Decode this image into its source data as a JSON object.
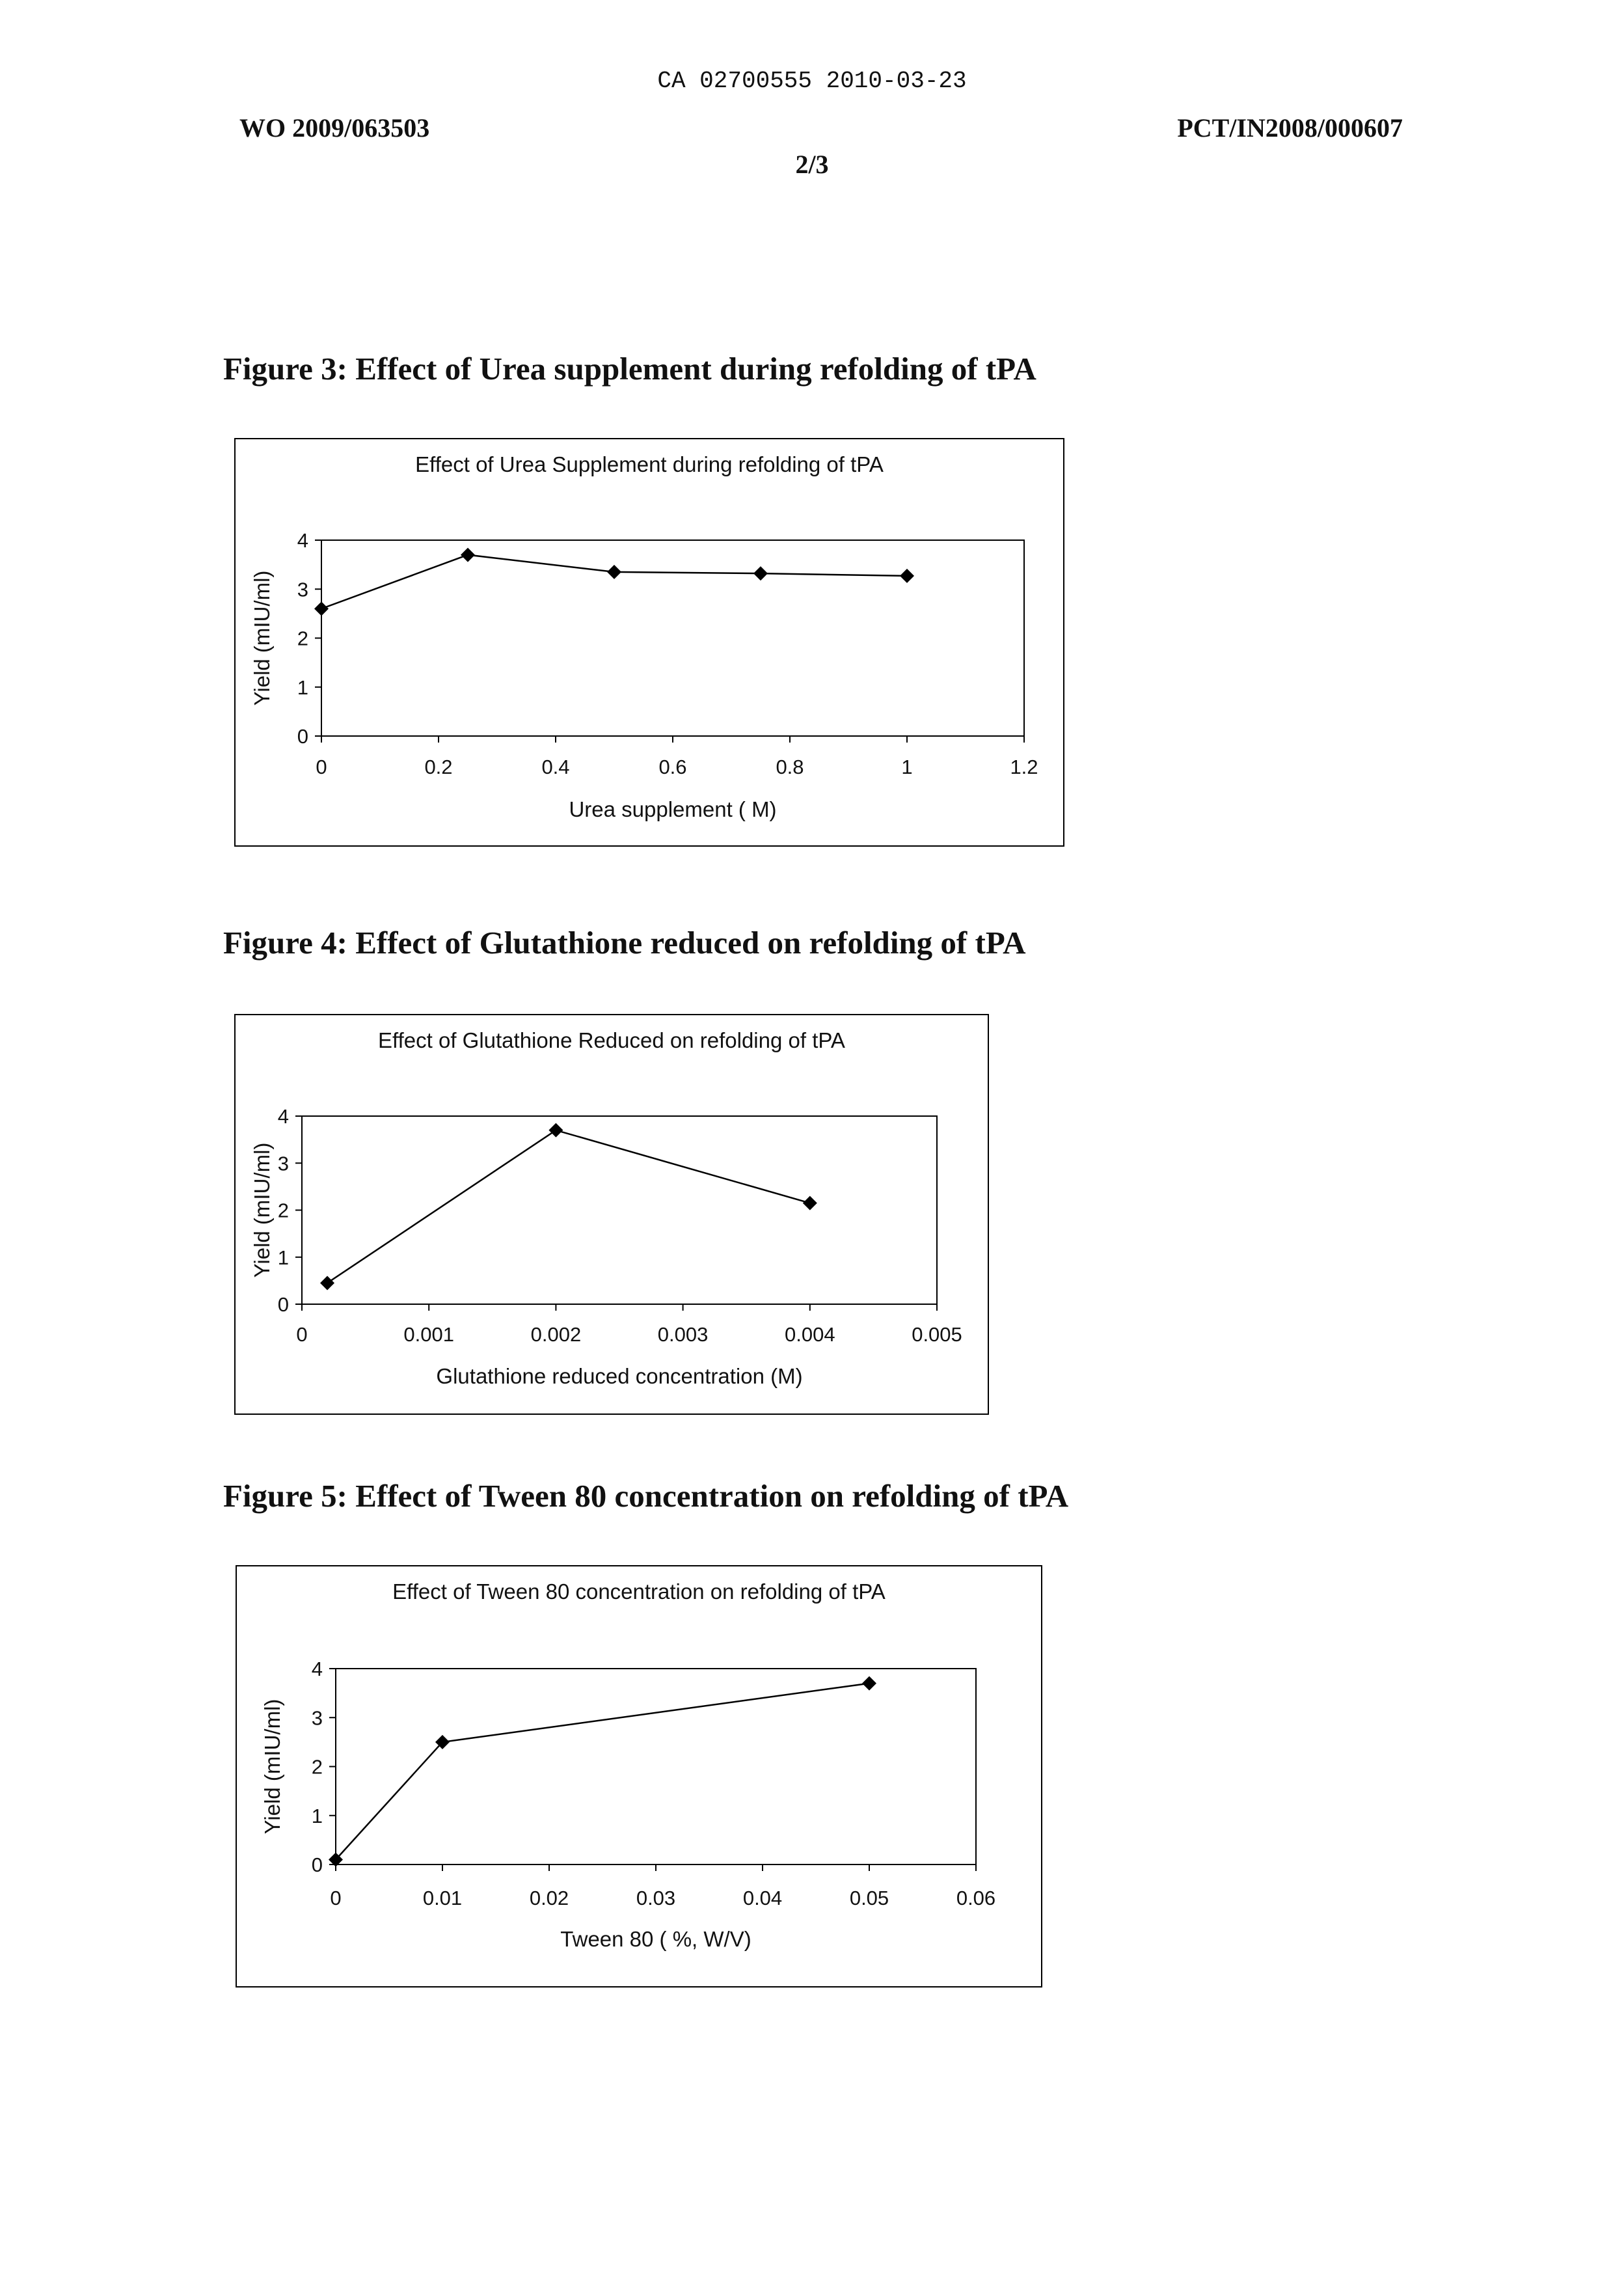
{
  "header": {
    "ca_number": "CA 02700555 2010-03-23",
    "wo_number": "WO 2009/063503",
    "pct_number": "PCT/IN2008/000607",
    "page": "2/3"
  },
  "figures": [
    {
      "caption": "Figure 3: Effect of Urea supplement during refolding of tPA"
    },
    {
      "caption": "Figure 4: Effect of Glutathione reduced on refolding of tPA"
    },
    {
      "caption": "Figure 5: Effect of Tween 80 concentration on refolding of tPA"
    }
  ],
  "chart_data": [
    {
      "type": "line",
      "title": "Effect of Urea Supplement during refolding of tPA",
      "xlabel": "Urea supplement ( M)",
      "ylabel": "Yield (mIU/ml)",
      "xlim": [
        0,
        1.2
      ],
      "ylim": [
        0,
        4
      ],
      "xticks": [
        "0",
        "0.2",
        "0.4",
        "0.6",
        "0.8",
        "1",
        "1.2"
      ],
      "yticks": [
        "0",
        "1",
        "2",
        "3",
        "4"
      ],
      "x": [
        0,
        0.25,
        0.5,
        0.75,
        1.0
      ],
      "y": [
        2.6,
        3.7,
        3.35,
        3.32,
        3.27
      ],
      "marker": "diamond",
      "grid": false,
      "legend": "none"
    },
    {
      "type": "line",
      "title": "Effect of Glutathione Reduced on refolding of tPA",
      "xlabel": "Glutathione reduced concentration (M)",
      "ylabel": "Yield (mIU/ml)",
      "xlim": [
        0,
        0.005
      ],
      "ylim": [
        0,
        4
      ],
      "xticks": [
        "0",
        "0.001",
        "0.002",
        "0.003",
        "0.004",
        "0.005"
      ],
      "yticks": [
        "0",
        "1",
        "2",
        "3",
        "4"
      ],
      "x": [
        0.0002,
        0.002,
        0.004
      ],
      "y": [
        0.45,
        3.7,
        2.15
      ],
      "marker": "diamond",
      "grid": false,
      "legend": "none"
    },
    {
      "type": "line",
      "title": "Effect of Tween 80  concentration on refolding of tPA",
      "xlabel": "Tween 80 ( %, W/V)",
      "ylabel": "Yield (mIU/ml)",
      "xlim": [
        0,
        0.06
      ],
      "ylim": [
        0,
        4
      ],
      "xticks": [
        "0",
        "0.01",
        "0.02",
        "0.03",
        "0.04",
        "0.05",
        "0.06"
      ],
      "yticks": [
        "0",
        "1",
        "2",
        "3",
        "4"
      ],
      "x": [
        0,
        0.01,
        0.05
      ],
      "y": [
        0.1,
        2.5,
        3.7
      ],
      "marker": "diamond",
      "grid": false,
      "legend": "none"
    }
  ]
}
